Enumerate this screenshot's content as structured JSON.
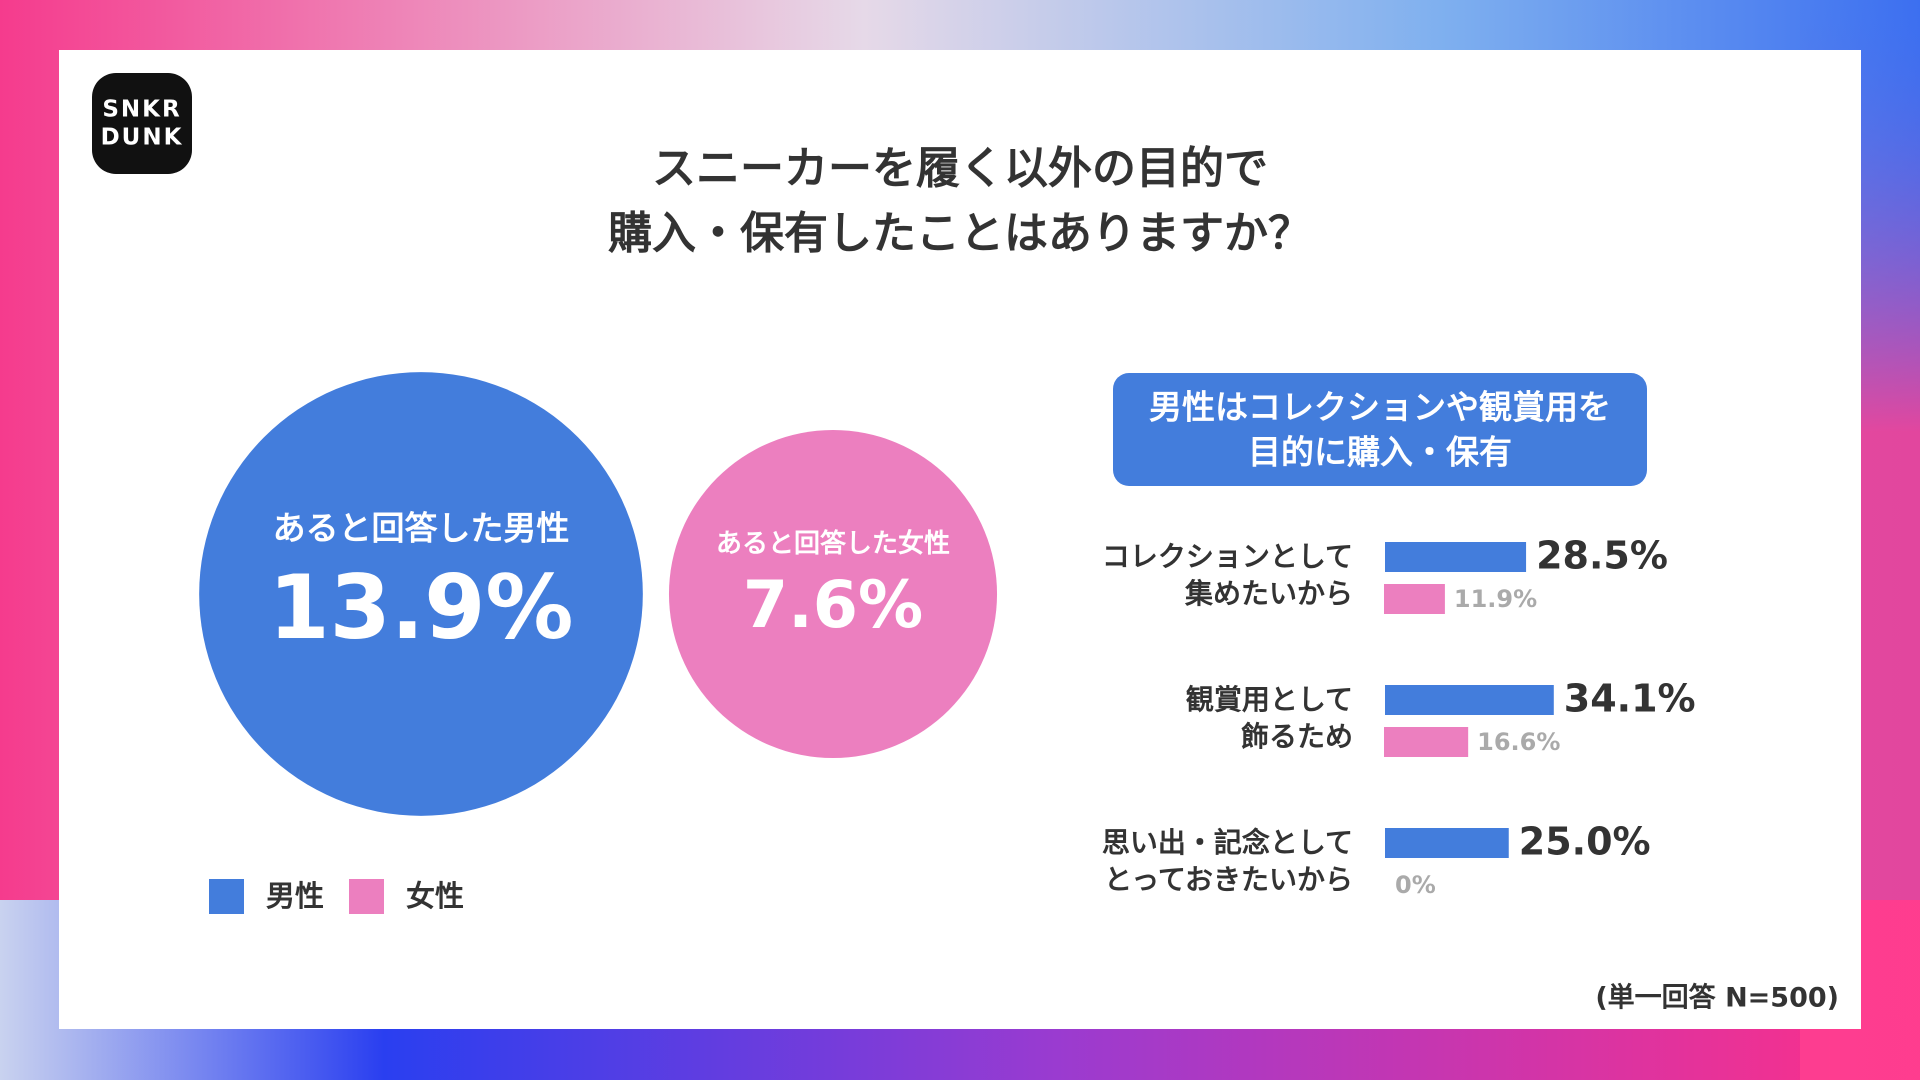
{
  "logo": [
    "SNKR",
    "DUNK"
  ],
  "title": [
    "スニーカーを履く以外の目的で",
    "購入・保有したことはありますか？"
  ],
  "note": "(単一回答 N=500)",
  "chart_data": [
    {
      "type": "bubble",
      "categories": [
        "あると回答した男性",
        "あると回答した女性"
      ],
      "values": [
        13.9,
        7.6
      ],
      "value_labels": [
        "13.9%",
        "7.6%"
      ],
      "colors": [
        "#437ddc",
        "#ec7fbf"
      ]
    },
    {
      "type": "bar",
      "title": [
        "男性はコレクションや観賞用を",
        "目的に購入・保有"
      ],
      "categories": [
        [
          "コレクションとして",
          "集めたいから"
        ],
        [
          "観賞用として",
          "飾るため"
        ],
        [
          "思い出・記念として",
          "とっておきたいから"
        ]
      ],
      "series": [
        {
          "name": "男性",
          "color": "#437ddc",
          "values": [
            28.5,
            34.1,
            25
          ],
          "value_labels": [
            "28.5%",
            "34.1%",
            "25.0%"
          ]
        },
        {
          "name": "女性",
          "color": "#ec7fbf",
          "values": [
            11.9,
            16.6,
            0
          ],
          "value_labels": [
            "11.9%",
            "16.6%",
            "0%"
          ]
        }
      ]
    }
  ]
}
